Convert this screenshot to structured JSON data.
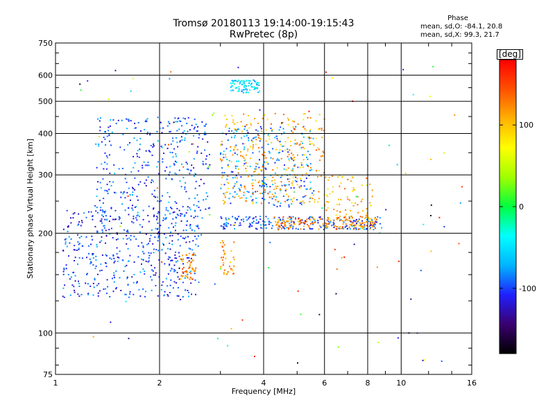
{
  "chart_data": {
    "type": "scatter",
    "title": "Tromsø 20180113 19:14:00-19:15:43",
    "subtitle": "RwPretec (8p)",
    "xlabel": "Frequency [MHz]",
    "ylabel": "Stationary phase Virtual Height [km]",
    "xscale": "log",
    "yscale": "log",
    "xlim": [
      1,
      16
    ],
    "ylim": [
      75,
      750
    ],
    "xticks": [
      1,
      2,
      4,
      6,
      8,
      10,
      16
    ],
    "xtick_labels": [
      "1",
      "2",
      "4",
      "6",
      "8",
      "10",
      "16"
    ],
    "yticks": [
      75,
      100,
      200,
      300,
      400,
      500,
      600,
      750
    ],
    "ytick_labels": [
      "75",
      "100",
      "200",
      "300",
      "400",
      "500",
      "600",
      "750"
    ],
    "grid": true,
    "legend": {
      "title": "Phase",
      "lines": [
        "mean, sd,O:  -84.1, 20.8",
        "mean, sd,X:  99.3, 21.7"
      ]
    },
    "colorbar": {
      "label": "[deg]",
      "range": [
        -180,
        180
      ],
      "ticks": [
        100,
        0,
        -100
      ],
      "tick_labels": [
        "100",
        "0",
        "-100"
      ],
      "colormap": [
        "#000000",
        "#3a0070",
        "#2020ff",
        "#00b4ff",
        "#00ffff",
        "#00ff40",
        "#a0ff00",
        "#ffff00",
        "#ffb000",
        "#ff5000",
        "#ff0000"
      ]
    },
    "point_clusters": [
      {
        "name": "O low trace",
        "x_range": [
          1.05,
          2.6
        ],
        "y_range": [
          128,
          240
        ],
        "phase": -100,
        "count": 480
      },
      {
        "name": "O low trace tail",
        "x_range": [
          2.3,
          2.55
        ],
        "y_range": [
          145,
          175
        ],
        "phase": 125,
        "count": 50
      },
      {
        "name": "O F1 region",
        "x_range": [
          1.3,
          2.8
        ],
        "y_range": [
          220,
          450
        ],
        "phase": -95,
        "count": 360
      },
      {
        "name": "O F region 3-5 MHz",
        "x_range": [
          3.0,
          5.6
        ],
        "y_range": [
          240,
          420
        ],
        "phase": -85,
        "count": 260
      },
      {
        "name": "X F region 3-6 MHz",
        "x_range": [
          3.0,
          6.0
        ],
        "y_range": [
          245,
          460
        ],
        "phase": 110,
        "count": 300
      },
      {
        "name": "O ~215 km band",
        "x_range": [
          3.0,
          8.8
        ],
        "y_range": [
          205,
          225
        ],
        "phase": -100,
        "count": 220
      },
      {
        "name": "X ~215 km band",
        "x_range": [
          4.3,
          8.5
        ],
        "y_range": [
          205,
          225
        ],
        "phase": 125,
        "count": 150
      },
      {
        "name": "X near-critical",
        "x_range": [
          6.0,
          8.3
        ],
        "y_range": [
          205,
          300
        ],
        "phase": 110,
        "count": 90
      },
      {
        "name": "O cluster 550 km",
        "x_range": [
          3.2,
          3.9
        ],
        "y_range": [
          530,
          580
        ],
        "phase": -55,
        "count": 80
      },
      {
        "name": "X low echoes",
        "x_range": [
          3.0,
          3.3
        ],
        "y_range": [
          150,
          190
        ],
        "phase": 120,
        "count": 40
      },
      {
        "name": "scattered",
        "x_range": [
          1.1,
          15.5
        ],
        "y_range": [
          80,
          680
        ],
        "phase": 0,
        "count": 110
      }
    ]
  }
}
